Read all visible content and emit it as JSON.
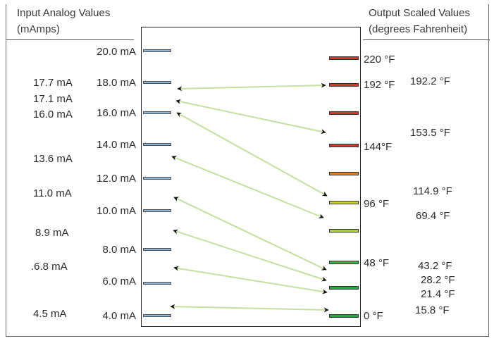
{
  "header": {
    "input_title": "Input Analog Values",
    "input_units": "(mAmps)",
    "output_title": "Output Scaled Values",
    "output_units": "(degrees Fahrenheit)"
  },
  "input_scale": [
    "20.0 mA",
    "18.0 mA",
    "16.0 mA",
    "14.0 mA",
    "12.0 mA",
    "10.0 mA",
    "8.0 mA",
    "6.0 mA",
    "4.0 mA"
  ],
  "input_values": [
    "17.7 mA",
    "17.1 mA",
    "16.0 mA",
    "13.6 mA",
    "11.0 mA",
    "8.9 mA",
    ".6.8 mA",
    "4.5 mA"
  ],
  "output_scale": [
    "220 °F",
    "192 °F",
    "144°F",
    "96 °F",
    "48 °F",
    "0 °F"
  ],
  "output_values": [
    "192.2  °F",
    "153.5  °F",
    "114.9 °F",
    "69.4  °F",
    "43.2  °F",
    "28.2 °F",
    "21.4 °F",
    "15.8  °F"
  ],
  "colors": {
    "input_tick": "#8fb6d8",
    "output_ticks": [
      "#d9322c",
      "#d9322c",
      "#d9322c",
      "#d9322c",
      "#e07e22",
      "#cfcf3a",
      "#a8d040",
      "#38b84a",
      "#22a844",
      "#22a844"
    ],
    "arrow_line": "#c5df9f",
    "arrow_head": "#111111"
  }
}
